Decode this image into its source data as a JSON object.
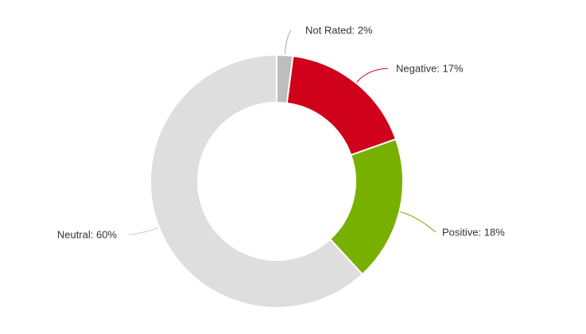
{
  "chart_data": {
    "type": "pie",
    "style": "donut",
    "title": "",
    "start_angle_deg": 0,
    "direction": "clockwise",
    "slices": [
      {
        "name": "Not Rated",
        "value": 2,
        "label": "Not Rated: 2%",
        "color": "#bdbdbd"
      },
      {
        "name": "Negative",
        "value": 17,
        "label": "Negative: 17%",
        "color": "#d0021b"
      },
      {
        "name": "Positive",
        "value": 18,
        "label": "Positive: 18%",
        "color": "#78b000"
      },
      {
        "name": "Neutral",
        "value": 60,
        "label": "Neutral: 60%",
        "color": "#dedede"
      }
    ]
  }
}
